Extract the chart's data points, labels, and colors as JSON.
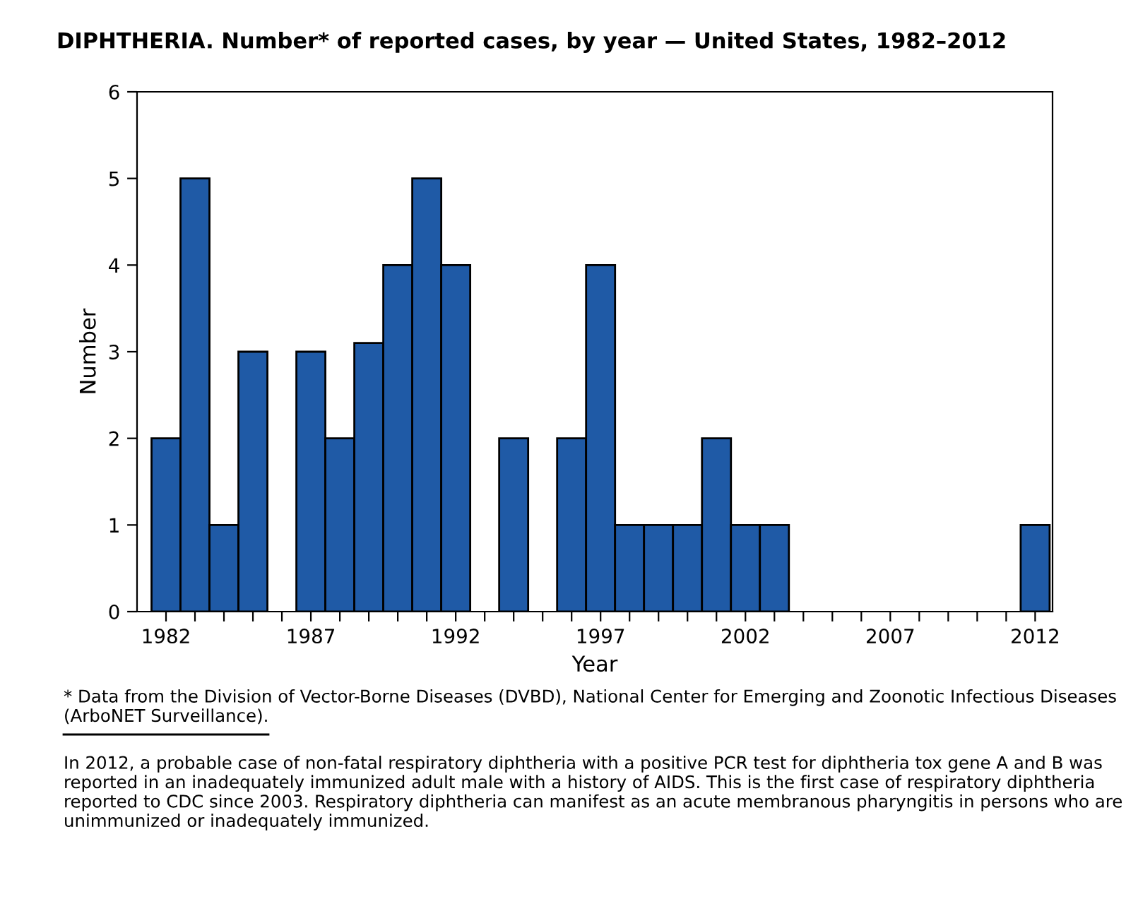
{
  "chart_data": {
    "type": "bar",
    "title": "DIPHTHERIA. Number* of reported cases, by year — United States, 1982–2012",
    "xlabel": "Year",
    "ylabel": "Number",
    "x": [
      1982,
      1983,
      1984,
      1985,
      1986,
      1987,
      1988,
      1989,
      1990,
      1991,
      1992,
      1993,
      1994,
      1995,
      1996,
      1997,
      1998,
      1999,
      2000,
      2001,
      2002,
      2003,
      2004,
      2005,
      2006,
      2007,
      2008,
      2009,
      2010,
      2011,
      2012
    ],
    "values": [
      2,
      5,
      1,
      3,
      0,
      3,
      2,
      3.1,
      4,
      5,
      4,
      0,
      2,
      0,
      2,
      4,
      1,
      1,
      1,
      2,
      1,
      1,
      0,
      0,
      0,
      0,
      0,
      0,
      0,
      0,
      1
    ],
    "color": "#1f5aa6",
    "xlim": [
      1981,
      2012.6
    ],
    "xticks": [
      1982,
      {
        "value": 1983,
        "label": null
      },
      {
        "value": 1984,
        "label": null
      },
      {
        "value": 1985,
        "label": null
      },
      {
        "value": 1986,
        "label": null
      },
      1987,
      {
        "value": 1988,
        "label": null
      },
      {
        "value": 1989,
        "label": null
      },
      {
        "value": 1990,
        "label": null
      },
      {
        "value": 1991,
        "label": null
      },
      1992,
      {
        "value": 1993,
        "label": null
      },
      {
        "value": 1994,
        "label": null
      },
      {
        "value": 1995,
        "label": null
      },
      {
        "value": 1996,
        "label": null
      },
      1997,
      {
        "value": 1998,
        "label": null
      },
      {
        "value": 1999,
        "label": null
      },
      {
        "value": 2000,
        "label": null
      },
      {
        "value": 2001,
        "label": null
      },
      2002,
      {
        "value": 2003,
        "label": null
      },
      {
        "value": 2004,
        "label": null
      },
      {
        "value": 2005,
        "label": null
      },
      {
        "value": 2006,
        "label": null
      },
      2007,
      {
        "value": 2008,
        "label": null
      },
      {
        "value": 2009,
        "label": null
      },
      {
        "value": 2010,
        "label": null
      },
      {
        "value": 2011,
        "label": null
      },
      2012
    ],
    "ylim": [
      0,
      6
    ],
    "yticks": [
      0,
      1,
      2,
      3,
      4,
      5,
      6
    ],
    "grid": false,
    "legend": false,
    "annotations": [
      "* Data from the Division of Vector-Borne Diseases (DVBD), National Center for Emerging and Zoonotic Infectious Diseases (ArboNET Surveillance).",
      "In 2012, a probable case of non-fatal respiratory diphtheria with a positive PCR test for diphtheria tox gene A and B was reported in an inadequately immunized adult male with a history of AIDS. This is the first case of respiratory diphtheria reported to CDC since 2003. Respiratory diphtheria can manifest as an acute membranous pharyngitis in persons who are unimmunized or inadequately immunized."
    ]
  }
}
